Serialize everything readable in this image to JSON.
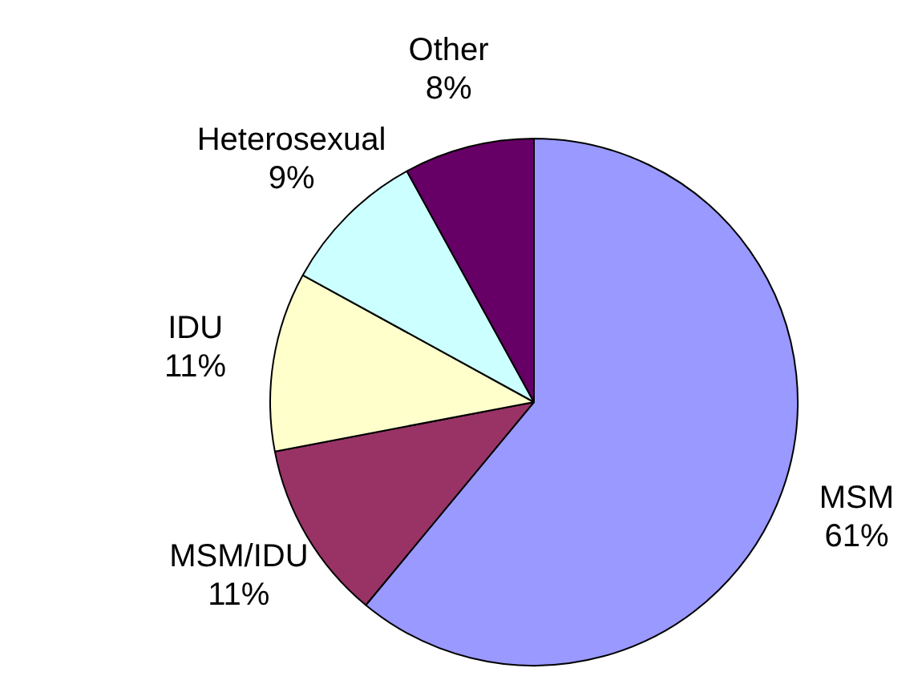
{
  "chart_data": {
    "type": "pie",
    "categories": [
      "MSM",
      "MSM/IDU",
      "IDU",
      "Heterosexual",
      "Other"
    ],
    "values": [
      61,
      11,
      11,
      9,
      8
    ],
    "colors": [
      "#9999ff",
      "#993366",
      "#ffffcc",
      "#ccffff",
      "#660066"
    ],
    "value_labels": [
      "61%",
      "11%",
      "11%",
      "9%",
      "8%"
    ],
    "legend": false
  }
}
